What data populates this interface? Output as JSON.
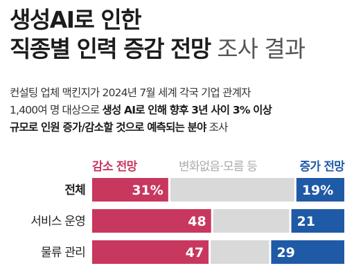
{
  "title": {
    "line1": "생성AI로 인한",
    "line2": "직종별 인력 증감 전망",
    "line2_light": " 조사 결과"
  },
  "description": {
    "line1": "컨설팅 업체 맥킨지가 2024년 7월 세계 각국 기업 관계자",
    "line2_plain": "1,400여 명 대상으로 ",
    "line2_bold": "생성 AI로 인해 향후 3년 사이 3% 이상",
    "line3_bold": "규모로 인원 증가/감소할 것으로 예측되는 분야",
    "line3_plain": " 조사"
  },
  "legend": {
    "decrease": "감소 전망",
    "neutral": "변화없음·모름 등",
    "increase": "증가 전망"
  },
  "colors": {
    "decrease": "#c8375e",
    "neutral": "#d9d9d9",
    "increase": "#1f5aa6"
  },
  "chart_data": {
    "type": "bar",
    "stacked": true,
    "orientation": "horizontal",
    "categories": [
      "전체",
      "서비스 운영",
      "물류 관리"
    ],
    "series": [
      {
        "name": "감소 전망",
        "values": [
          31,
          48,
          47
        ]
      },
      {
        "name": "변화없음·모름 등",
        "values": [
          50,
          31,
          24
        ]
      },
      {
        "name": "증가 전망",
        "values": [
          19,
          21,
          29
        ]
      }
    ],
    "value_labels": {
      "decrease": [
        "31%",
        "48",
        "47"
      ],
      "increase": [
        "19%",
        "21",
        "29"
      ]
    }
  }
}
